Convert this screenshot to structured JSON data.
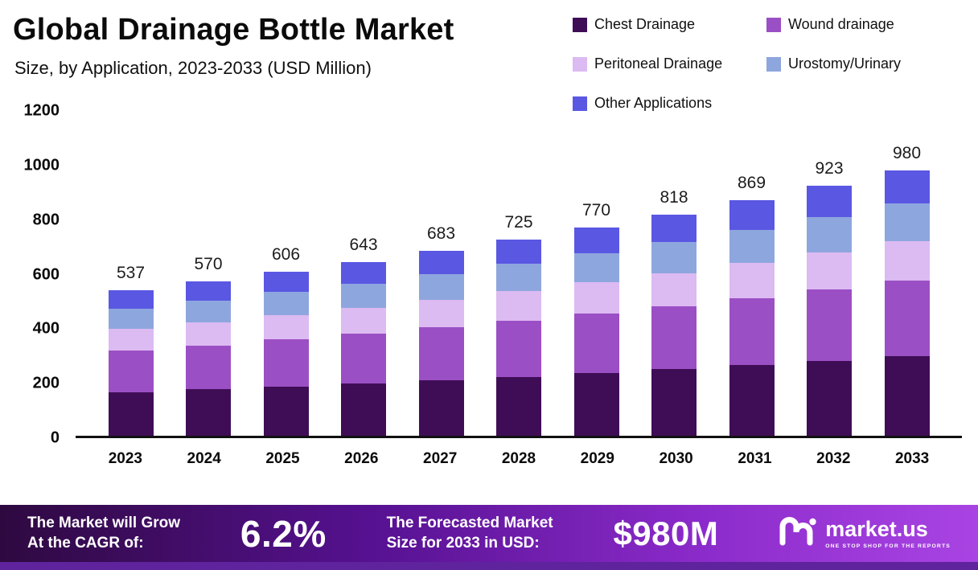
{
  "header": {
    "title": "Global Drainage Bottle Market",
    "subtitle": "Size, by Application, 2023-2033 (USD Million)"
  },
  "chart_data": {
    "type": "bar",
    "stacked": true,
    "title": "Global Drainage Bottle Market Size, by Application, 2023-2033 (USD Million)",
    "categories": [
      "2023",
      "2024",
      "2025",
      "2026",
      "2027",
      "2028",
      "2029",
      "2030",
      "2031",
      "2032",
      "2033"
    ],
    "totals": [
      537,
      570,
      606,
      643,
      683,
      725,
      770,
      818,
      869,
      923,
      980
    ],
    "series": [
      {
        "name": "Chest Drainage",
        "color": "#3f0d56",
        "values": [
          161,
          171,
          182,
          193,
          205,
          218,
          231,
          245,
          261,
          277,
          294
        ]
      },
      {
        "name": "Wound drainage",
        "color": "#9b4fc4",
        "values": [
          153,
          162,
          173,
          183,
          195,
          207,
          219,
          233,
          248,
          263,
          279
        ]
      },
      {
        "name": "Peritoneal Drainage",
        "color": "#dcbaf2",
        "values": [
          81,
          86,
          91,
          96,
          102,
          109,
          116,
          123,
          130,
          138,
          147
        ]
      },
      {
        "name": "Urostomy/Urinary",
        "color": "#8ea6de",
        "values": [
          75,
          80,
          85,
          90,
          96,
          101,
          108,
          115,
          122,
          129,
          137
        ]
      },
      {
        "name": "Other Applications",
        "color": "#5a57e3",
        "values": [
          67,
          71,
          75,
          81,
          85,
          90,
          96,
          102,
          108,
          116,
          123
        ]
      }
    ],
    "ylim": [
      0,
      1200
    ],
    "yticks": [
      0,
      200,
      400,
      600,
      800,
      1000,
      1200
    ],
    "xlabel": "",
    "ylabel": "",
    "grid": false,
    "legend_position": "top-right",
    "value_labels": "totals shown above each bar"
  },
  "banner": {
    "cagr_label_line1": "The Market will Grow",
    "cagr_label_line2": "At the CAGR of:",
    "cagr_value": "6.2%",
    "forecast_label_line1": "The Forecasted Market",
    "forecast_label_line2": "Size for 2033 in USD:",
    "forecast_value": "$980M",
    "brand": {
      "name": "market.us",
      "tagline": "ONE STOP SHOP FOR THE REPORTS"
    }
  }
}
